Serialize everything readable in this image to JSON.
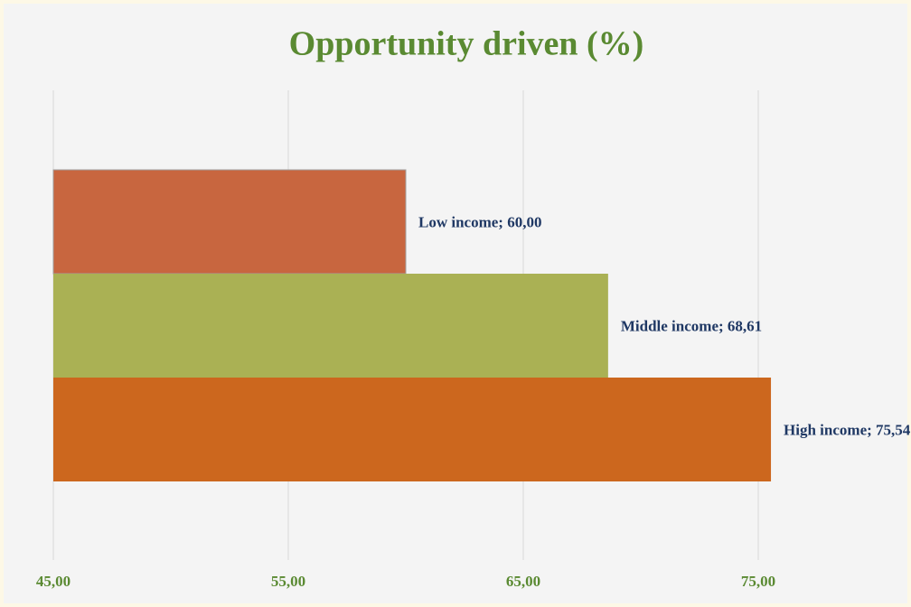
{
  "chart_data": {
    "type": "bar",
    "orientation": "horizontal",
    "title": "Opportunity driven (%)",
    "categories": [
      "Low income",
      "Middle income",
      "High income"
    ],
    "values": [
      60.0,
      68.61,
      75.54
    ],
    "value_labels": [
      "Low income; 60,00",
      "Middle income; 68,61",
      "High income; 75,54"
    ],
    "colors": [
      "#c8663f",
      "#aab154",
      "#cc671e"
    ],
    "xlim": [
      45,
      76
    ],
    "xticks": [
      {
        "value": 45,
        "label": "45,00"
      },
      {
        "value": 55,
        "label": "55,00"
      },
      {
        "value": 65,
        "label": "65,00"
      },
      {
        "value": 75,
        "label": "75,00"
      }
    ],
    "grid": true
  }
}
